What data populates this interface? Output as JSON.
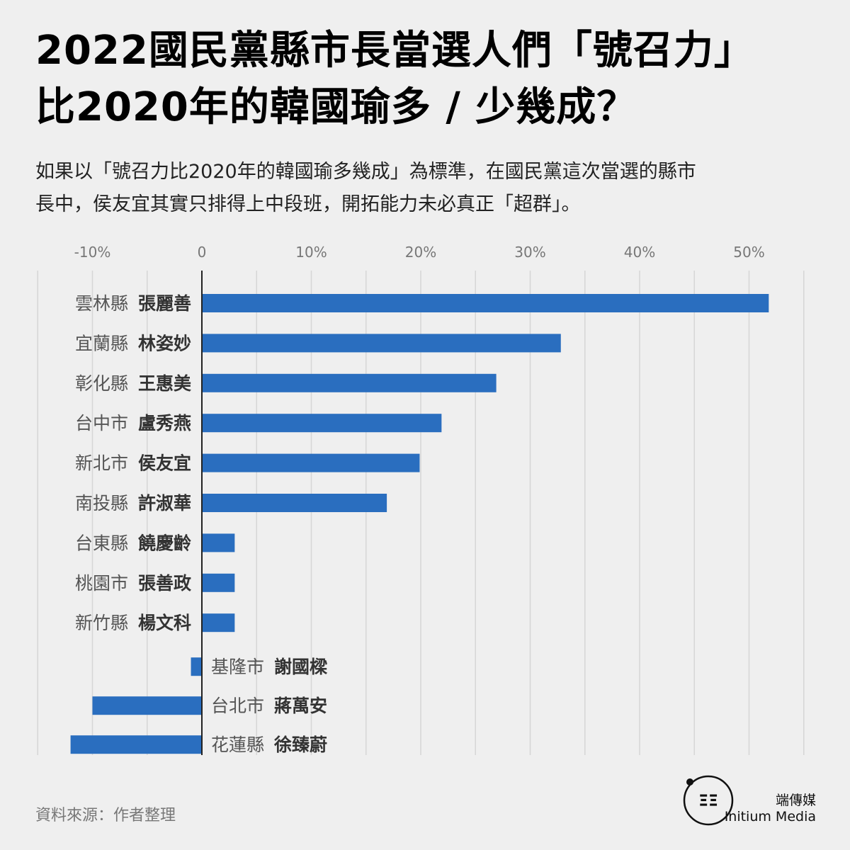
{
  "header": {
    "title_line1": "2022國民黨縣市長當選人們「號召力」",
    "title_line2": "比2020年的韓國瑜多 / 少幾成？",
    "subtitle_line1": "如果以「號召力比2020年的韓國瑜多幾成」為標準，在國民黨這次當選的縣市",
    "subtitle_line2": "長中，侯友宜其實只排得上中段班，開拓能力未必真正「超群」。"
  },
  "footer": {
    "source": "資料來源：作者整理",
    "brand_zh": "端傳媒",
    "brand_en": "Initium Media",
    "logo_text": "ΞΞ"
  },
  "colors": {
    "bar": "#2a6ebf",
    "background": "#efefef",
    "grid": "#d6d6d6",
    "axis": "#222222"
  },
  "chart_data": {
    "type": "bar",
    "orientation": "horizontal",
    "title": "",
    "xlabel": "",
    "ylabel": "",
    "xlim": [
      -15,
      55
    ],
    "x_ticks": [
      {
        "value": -10,
        "label": "-10%"
      },
      {
        "value": 0,
        "label": "0"
      },
      {
        "value": 10,
        "label": "10%"
      },
      {
        "value": 20,
        "label": "20%"
      },
      {
        "value": 30,
        "label": "30%"
      },
      {
        "value": 40,
        "label": "40%"
      },
      {
        "value": 50,
        "label": "50%"
      }
    ],
    "grid": true,
    "categories": [
      {
        "region": "雲林縣",
        "name": "張麗善",
        "value": 51.8
      },
      {
        "region": "宜蘭縣",
        "name": "林姿妙",
        "value": 32.8
      },
      {
        "region": "彰化縣",
        "name": "王惠美",
        "value": 26.9
      },
      {
        "region": "台中市",
        "name": "盧秀燕",
        "value": 21.9
      },
      {
        "region": "新北市",
        "name": "侯友宜",
        "value": 19.9
      },
      {
        "region": "南投縣",
        "name": "許淑華",
        "value": 16.9
      },
      {
        "region": "台東縣",
        "name": "饒慶齡",
        "value": 3.0
      },
      {
        "region": "桃園市",
        "name": "張善政",
        "value": 3.0
      },
      {
        "region": "新竹縣",
        "name": "楊文科",
        "value": 3.0
      },
      {
        "region": "基隆市",
        "name": "謝國樑",
        "value": -1.0
      },
      {
        "region": "台北市",
        "name": "蔣萬安",
        "value": -10.0
      },
      {
        "region": "花蓮縣",
        "name": "徐臻蔚",
        "value": -12.0
      }
    ]
  }
}
